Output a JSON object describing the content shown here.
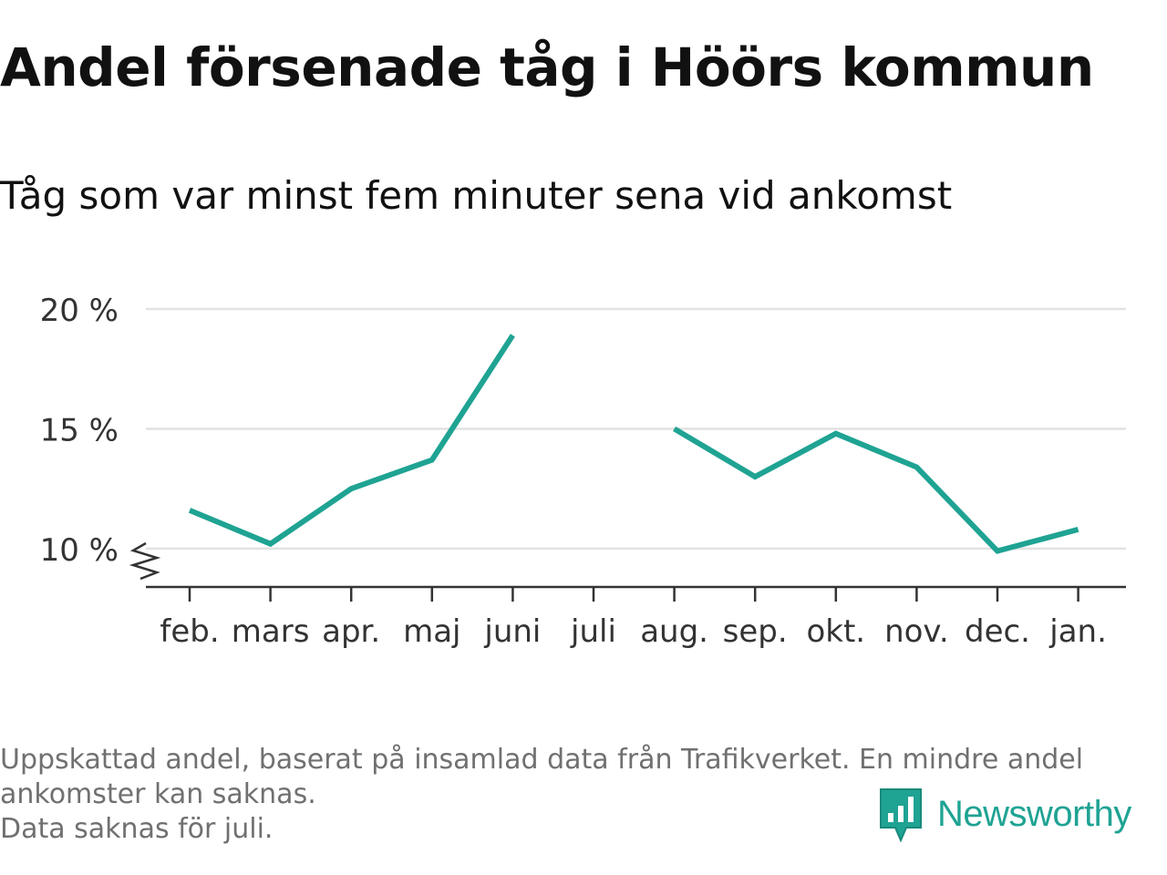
{
  "title": "Andel försenade tåg i Höörs kommun",
  "subtitle": "Tåg som var minst fem minuter sena vid ankomst",
  "footnote": [
    "Uppskattad andel, baserat på insamlad data från Trafikverket. En mindre andel",
    "ankomster kan saknas.",
    "Data saknas för juli."
  ],
  "brand": {
    "name": "Newsworthy",
    "icon": "newsworthy-logo-icon",
    "color": "#1fa393"
  },
  "chart_data": {
    "type": "line",
    "categories": [
      "feb.",
      "mars",
      "apr.",
      "maj",
      "juni",
      "juli",
      "aug.",
      "sep.",
      "okt.",
      "nov.",
      "dec.",
      "jan."
    ],
    "series": [
      {
        "values": [
          11.6,
          10.2,
          12.5,
          13.7,
          18.9,
          null,
          15.0,
          13.0,
          14.8,
          13.4,
          9.9,
          10.8
        ],
        "color": "#1fa393"
      }
    ],
    "ylim": [
      8.4,
      20.0
    ],
    "yticks": [
      10,
      15,
      20
    ],
    "ytick_labels": [
      "10 %",
      "15 %",
      "20 %"
    ],
    "grid": true,
    "axis_break": true,
    "gridline_color": "#e2e2e2",
    "axis_color": "#333333"
  }
}
